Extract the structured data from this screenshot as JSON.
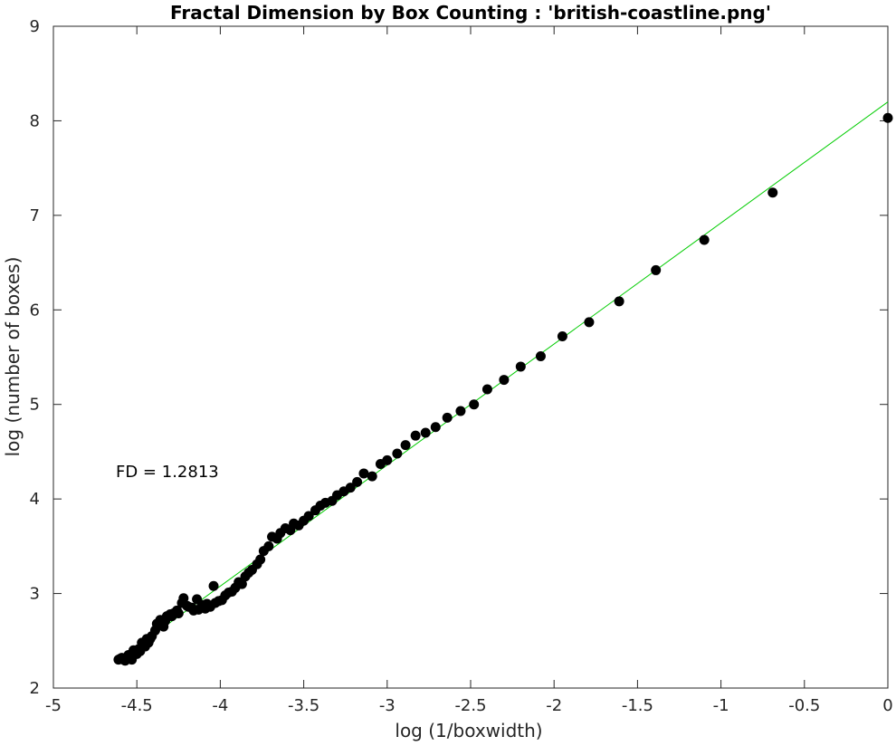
{
  "chart_data": {
    "type": "scatter",
    "title": "Fractal Dimension by Box Counting : 'british-coastline.png'",
    "xlabel": "log (1/boxwidth)",
    "ylabel": "log (number of boxes)",
    "xlim": [
      -5,
      0
    ],
    "ylim": [
      2,
      9
    ],
    "xticks": [
      -5,
      -4.5,
      -4,
      -3.5,
      -3,
      -2.5,
      -2,
      -1.5,
      -1,
      -0.5,
      0
    ],
    "yticks": [
      2,
      3,
      4,
      5,
      6,
      7,
      8,
      9
    ],
    "grid": false,
    "annotation": "FD = 1.2813",
    "series": [
      {
        "marker_color": "#000000",
        "x": [
          0,
          -0.69,
          -1.1,
          -1.39,
          -1.61,
          -1.79,
          -1.95,
          -2.08,
          -2.2,
          -2.3,
          -2.4,
          -2.48,
          -2.56,
          -2.64,
          -2.71,
          -2.77,
          -2.83,
          -2.89,
          -2.94,
          -3.0,
          -3.04,
          -3.09,
          -3.14,
          -3.18,
          -3.22,
          -3.26,
          -3.3,
          -3.33,
          -3.37,
          -3.4,
          -3.43,
          -3.47,
          -3.5,
          -3.53,
          -3.56,
          -3.58,
          -3.61,
          -3.64,
          -3.66,
          -3.69,
          -3.71,
          -3.74,
          -3.76,
          -3.78,
          -3.81,
          -3.83,
          -3.85,
          -3.87,
          -3.89,
          -3.91,
          -3.93,
          -3.95,
          -3.97,
          -3.99,
          -4.01,
          -4.03,
          -4.04,
          -4.06,
          -4.08,
          -4.09,
          -4.11,
          -4.13,
          -4.14,
          -4.16,
          -4.17,
          -4.19,
          -4.2,
          -4.22,
          -4.23,
          -4.25,
          -4.26,
          -4.28,
          -4.29,
          -4.3,
          -4.32,
          -4.33,
          -4.34,
          -4.36,
          -4.37,
          -4.38,
          -4.39,
          -4.41,
          -4.42,
          -4.43,
          -4.44,
          -4.45,
          -4.47,
          -4.48,
          -4.49,
          -4.5,
          -4.51,
          -4.52,
          -4.53,
          -4.54,
          -4.55,
          -4.56,
          -4.57,
          -4.58,
          -4.59,
          -4.6,
          -4.61
        ],
        "y": [
          8.03,
          7.24,
          6.74,
          6.42,
          6.09,
          5.87,
          5.72,
          5.51,
          5.4,
          5.26,
          5.16,
          5.0,
          4.93,
          4.86,
          4.76,
          4.7,
          4.67,
          4.57,
          4.48,
          4.41,
          4.37,
          4.24,
          4.27,
          4.18,
          4.12,
          4.08,
          4.04,
          3.98,
          3.96,
          3.93,
          3.88,
          3.82,
          3.77,
          3.72,
          3.74,
          3.67,
          3.69,
          3.64,
          3.58,
          3.6,
          3.5,
          3.45,
          3.36,
          3.31,
          3.25,
          3.22,
          3.18,
          3.1,
          3.12,
          3.06,
          3.02,
          3.01,
          2.98,
          2.93,
          2.92,
          2.9,
          3.08,
          2.86,
          2.89,
          2.84,
          2.88,
          2.83,
          2.94,
          2.82,
          2.85,
          2.86,
          2.87,
          2.95,
          2.9,
          2.79,
          2.82,
          2.79,
          2.76,
          2.78,
          2.76,
          2.71,
          2.65,
          2.72,
          2.67,
          2.68,
          2.61,
          2.55,
          2.52,
          2.48,
          2.52,
          2.44,
          2.48,
          2.39,
          2.41,
          2.36,
          2.37,
          2.4,
          2.3,
          2.33,
          2.35,
          2.31,
          2.29,
          2.3,
          2.32,
          2.31,
          2.3
        ]
      }
    ],
    "fit_line": {
      "color": "#00cc00",
      "x": [
        -4.6,
        0
      ],
      "y": [
        2.31,
        8.2
      ]
    }
  }
}
